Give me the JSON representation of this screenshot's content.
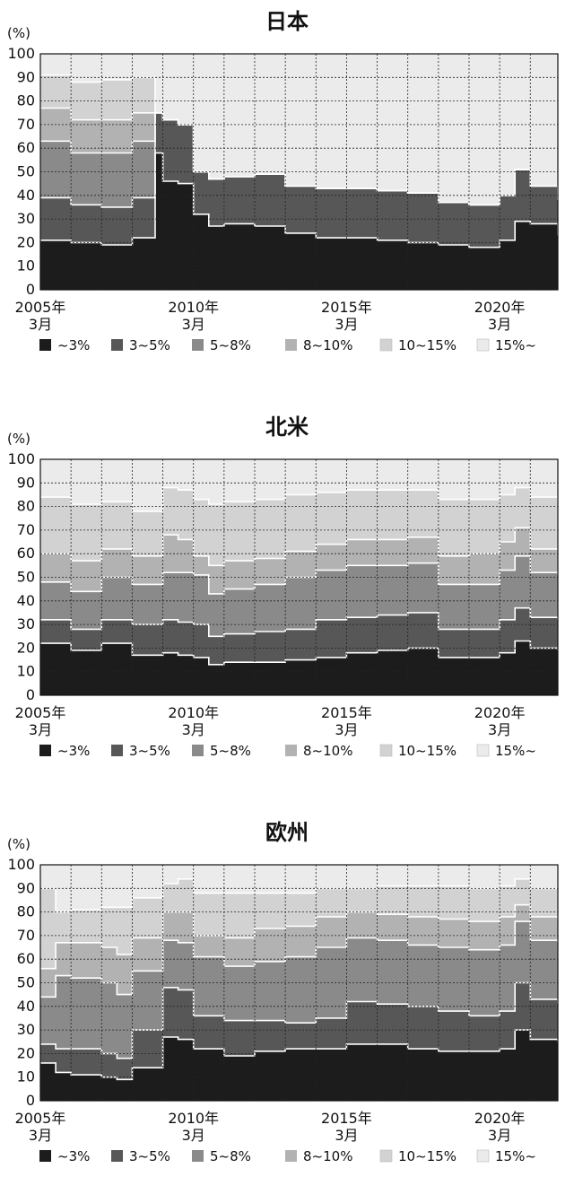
{
  "panels_meta": {
    "unit_label": "(%)",
    "y_ticks": [
      "0",
      "10",
      "20",
      "30",
      "40",
      "50",
      "60",
      "70",
      "80",
      "90",
      "100"
    ],
    "x_ticks": [
      {
        "year": "2005年",
        "month": "3月",
        "x": 2005.0
      },
      {
        "year": "2010年",
        "month": "3月",
        "x": 2010.0
      },
      {
        "year": "2015年",
        "month": "3月",
        "x": 2015.0
      },
      {
        "year": "2020年",
        "month": "3月",
        "x": 2020.0
      }
    ],
    "legend": [
      "~3%",
      "3~5%",
      "5~8%",
      "8~10%",
      "10~15%",
      "15%~"
    ],
    "colors": [
      "#1c1c1c",
      "#575757",
      "#8a8a8a",
      "#b2b2b2",
      "#d2d2d2",
      "#ebebeb"
    ],
    "boundary_color": "#ffffff"
  },
  "chart_data": [
    {
      "type": "area",
      "title": "日本",
      "ylabel": "(%)",
      "ylim": [
        0,
        100
      ],
      "xlim": [
        2005.0,
        2021.9
      ],
      "grid": true,
      "legend_position": "bottom",
      "x": [
        2005.0,
        2006.0,
        2007.0,
        2008.0,
        2008.75,
        2009.0,
        2009.5,
        2010.0,
        2010.5,
        2011.0,
        2012.0,
        2013.0,
        2014.0,
        2015.0,
        2016.0,
        2017.0,
        2018.0,
        2019.0,
        2020.0,
        2020.5,
        2021.0,
        2021.9
      ],
      "series": [
        {
          "name": "~3%",
          "values": [
            21,
            20,
            19,
            22,
            58,
            46,
            45,
            32,
            27,
            28,
            27,
            24,
            22,
            22,
            21,
            20,
            19,
            18,
            21,
            29,
            28,
            23
          ]
        },
        {
          "name": "3~5%",
          "values": [
            18,
            16,
            16,
            17,
            17,
            26,
            25,
            18,
            20,
            20,
            22,
            20,
            21,
            21,
            21,
            21,
            18,
            18,
            19,
            22,
            16,
            15
          ]
        },
        {
          "name": "5~8%",
          "values": [
            24,
            22,
            23,
            24,
            0,
            0,
            0,
            0,
            0,
            0,
            0,
            0,
            0,
            0,
            0,
            0,
            0,
            0,
            0,
            0,
            0,
            0
          ]
        },
        {
          "name": "8~10%",
          "values": [
            14,
            14,
            14,
            12,
            0,
            0,
            0,
            0,
            0,
            0,
            0,
            0,
            0,
            0,
            0,
            0,
            0,
            0,
            0,
            0,
            0,
            0
          ]
        },
        {
          "name": "10~15%",
          "values": [
            14,
            16,
            17,
            15,
            0,
            0,
            0,
            0,
            0,
            0,
            0,
            0,
            0,
            0,
            0,
            0,
            0,
            0,
            0,
            0,
            0,
            0
          ]
        },
        {
          "name": "15%~",
          "values": [
            9,
            12,
            11,
            10,
            0,
            0,
            0,
            0,
            0,
            0,
            0,
            0,
            0,
            0,
            0,
            0,
            0,
            0,
            0,
            0,
            0,
            0
          ]
        }
      ]
    },
    {
      "type": "area",
      "title": "北米",
      "ylabel": "(%)",
      "ylim": [
        0,
        100
      ],
      "xlim": [
        2005.0,
        2021.9
      ],
      "grid": true,
      "legend_position": "bottom",
      "x": [
        2005.0,
        2006.0,
        2007.0,
        2008.0,
        2009.0,
        2009.5,
        2010.0,
        2010.5,
        2011.0,
        2012.0,
        2013.0,
        2014.0,
        2015.0,
        2016.0,
        2017.0,
        2018.0,
        2019.0,
        2020.0,
        2020.5,
        2021.0,
        2021.9
      ],
      "series": [
        {
          "name": "~3%",
          "values": [
            22,
            19,
            22,
            17,
            18,
            17,
            16,
            13,
            14,
            14,
            15,
            16,
            18,
            19,
            20,
            16,
            16,
            18,
            23,
            20,
            19
          ]
        },
        {
          "name": "3~5%",
          "values": [
            10,
            9,
            10,
            13,
            14,
            14,
            14,
            12,
            12,
            13,
            13,
            16,
            15,
            15,
            15,
            12,
            12,
            14,
            14,
            13,
            13
          ]
        },
        {
          "name": "5~8%",
          "values": [
            16,
            16,
            18,
            17,
            20,
            21,
            21,
            18,
            19,
            20,
            22,
            21,
            22,
            21,
            21,
            19,
            19,
            21,
            22,
            19,
            19
          ]
        },
        {
          "name": "8~10%",
          "values": [
            12,
            13,
            12,
            12,
            16,
            14,
            8,
            12,
            12,
            11,
            11,
            11,
            11,
            11,
            11,
            12,
            13,
            12,
            12,
            10,
            11
          ]
        },
        {
          "name": "10~15%",
          "values": [
            24,
            24,
            20,
            19,
            20,
            21,
            24,
            26,
            25,
            25,
            24,
            22,
            21,
            21,
            20,
            24,
            23,
            20,
            17,
            22,
            20
          ]
        },
        {
          "name": "15%~",
          "values": [
            16,
            19,
            18,
            22,
            12,
            13,
            17,
            19,
            18,
            17,
            15,
            14,
            13,
            13,
            13,
            17,
            17,
            15,
            12,
            16,
            18
          ]
        }
      ]
    },
    {
      "type": "area",
      "title": "欧州",
      "ylabel": "(%)",
      "ylim": [
        0,
        100
      ],
      "xlim": [
        2005.0,
        2021.9
      ],
      "grid": true,
      "legend_position": "bottom",
      "x": [
        2005.0,
        2005.5,
        2006.0,
        2007.0,
        2007.5,
        2008.0,
        2009.0,
        2009.5,
        2010.0,
        2010.5,
        2011.0,
        2012.0,
        2013.0,
        2014.0,
        2015.0,
        2016.0,
        2017.0,
        2018.0,
        2019.0,
        2020.0,
        2020.5,
        2021.0,
        2021.9
      ],
      "series": [
        {
          "name": "~3%",
          "values": [
            16,
            12,
            11,
            10,
            9,
            14,
            27,
            26,
            22,
            22,
            19,
            21,
            22,
            22,
            24,
            24,
            22,
            21,
            21,
            22,
            30,
            26,
            25
          ]
        },
        {
          "name": "3~5%",
          "values": [
            8,
            10,
            11,
            10,
            9,
            16,
            21,
            21,
            14,
            14,
            15,
            13,
            11,
            13,
            18,
            17,
            18,
            17,
            15,
            16,
            20,
            17,
            16
          ]
        },
        {
          "name": "5~8%",
          "values": [
            20,
            31,
            30,
            30,
            27,
            25,
            20,
            20,
            25,
            25,
            23,
            25,
            28,
            30,
            27,
            27,
            26,
            27,
            28,
            28,
            26,
            25,
            26
          ]
        },
        {
          "name": "8~10%",
          "values": [
            12,
            14,
            15,
            15,
            17,
            14,
            12,
            13,
            9,
            9,
            12,
            14,
            13,
            13,
            11,
            11,
            12,
            12,
            12,
            12,
            7,
            10,
            10
          ]
        },
        {
          "name": "10~15%",
          "values": [
            34,
            13,
            14,
            17,
            20,
            17,
            12,
            14,
            18,
            18,
            19,
            15,
            14,
            12,
            10,
            12,
            13,
            14,
            14,
            13,
            11,
            12,
            14
          ]
        },
        {
          "name": "15%~",
          "values": [
            10,
            20,
            19,
            18,
            18,
            14,
            8,
            6,
            12,
            12,
            12,
            12,
            12,
            10,
            10,
            9,
            9,
            9,
            10,
            9,
            6,
            10,
            9
          ]
        }
      ]
    }
  ]
}
